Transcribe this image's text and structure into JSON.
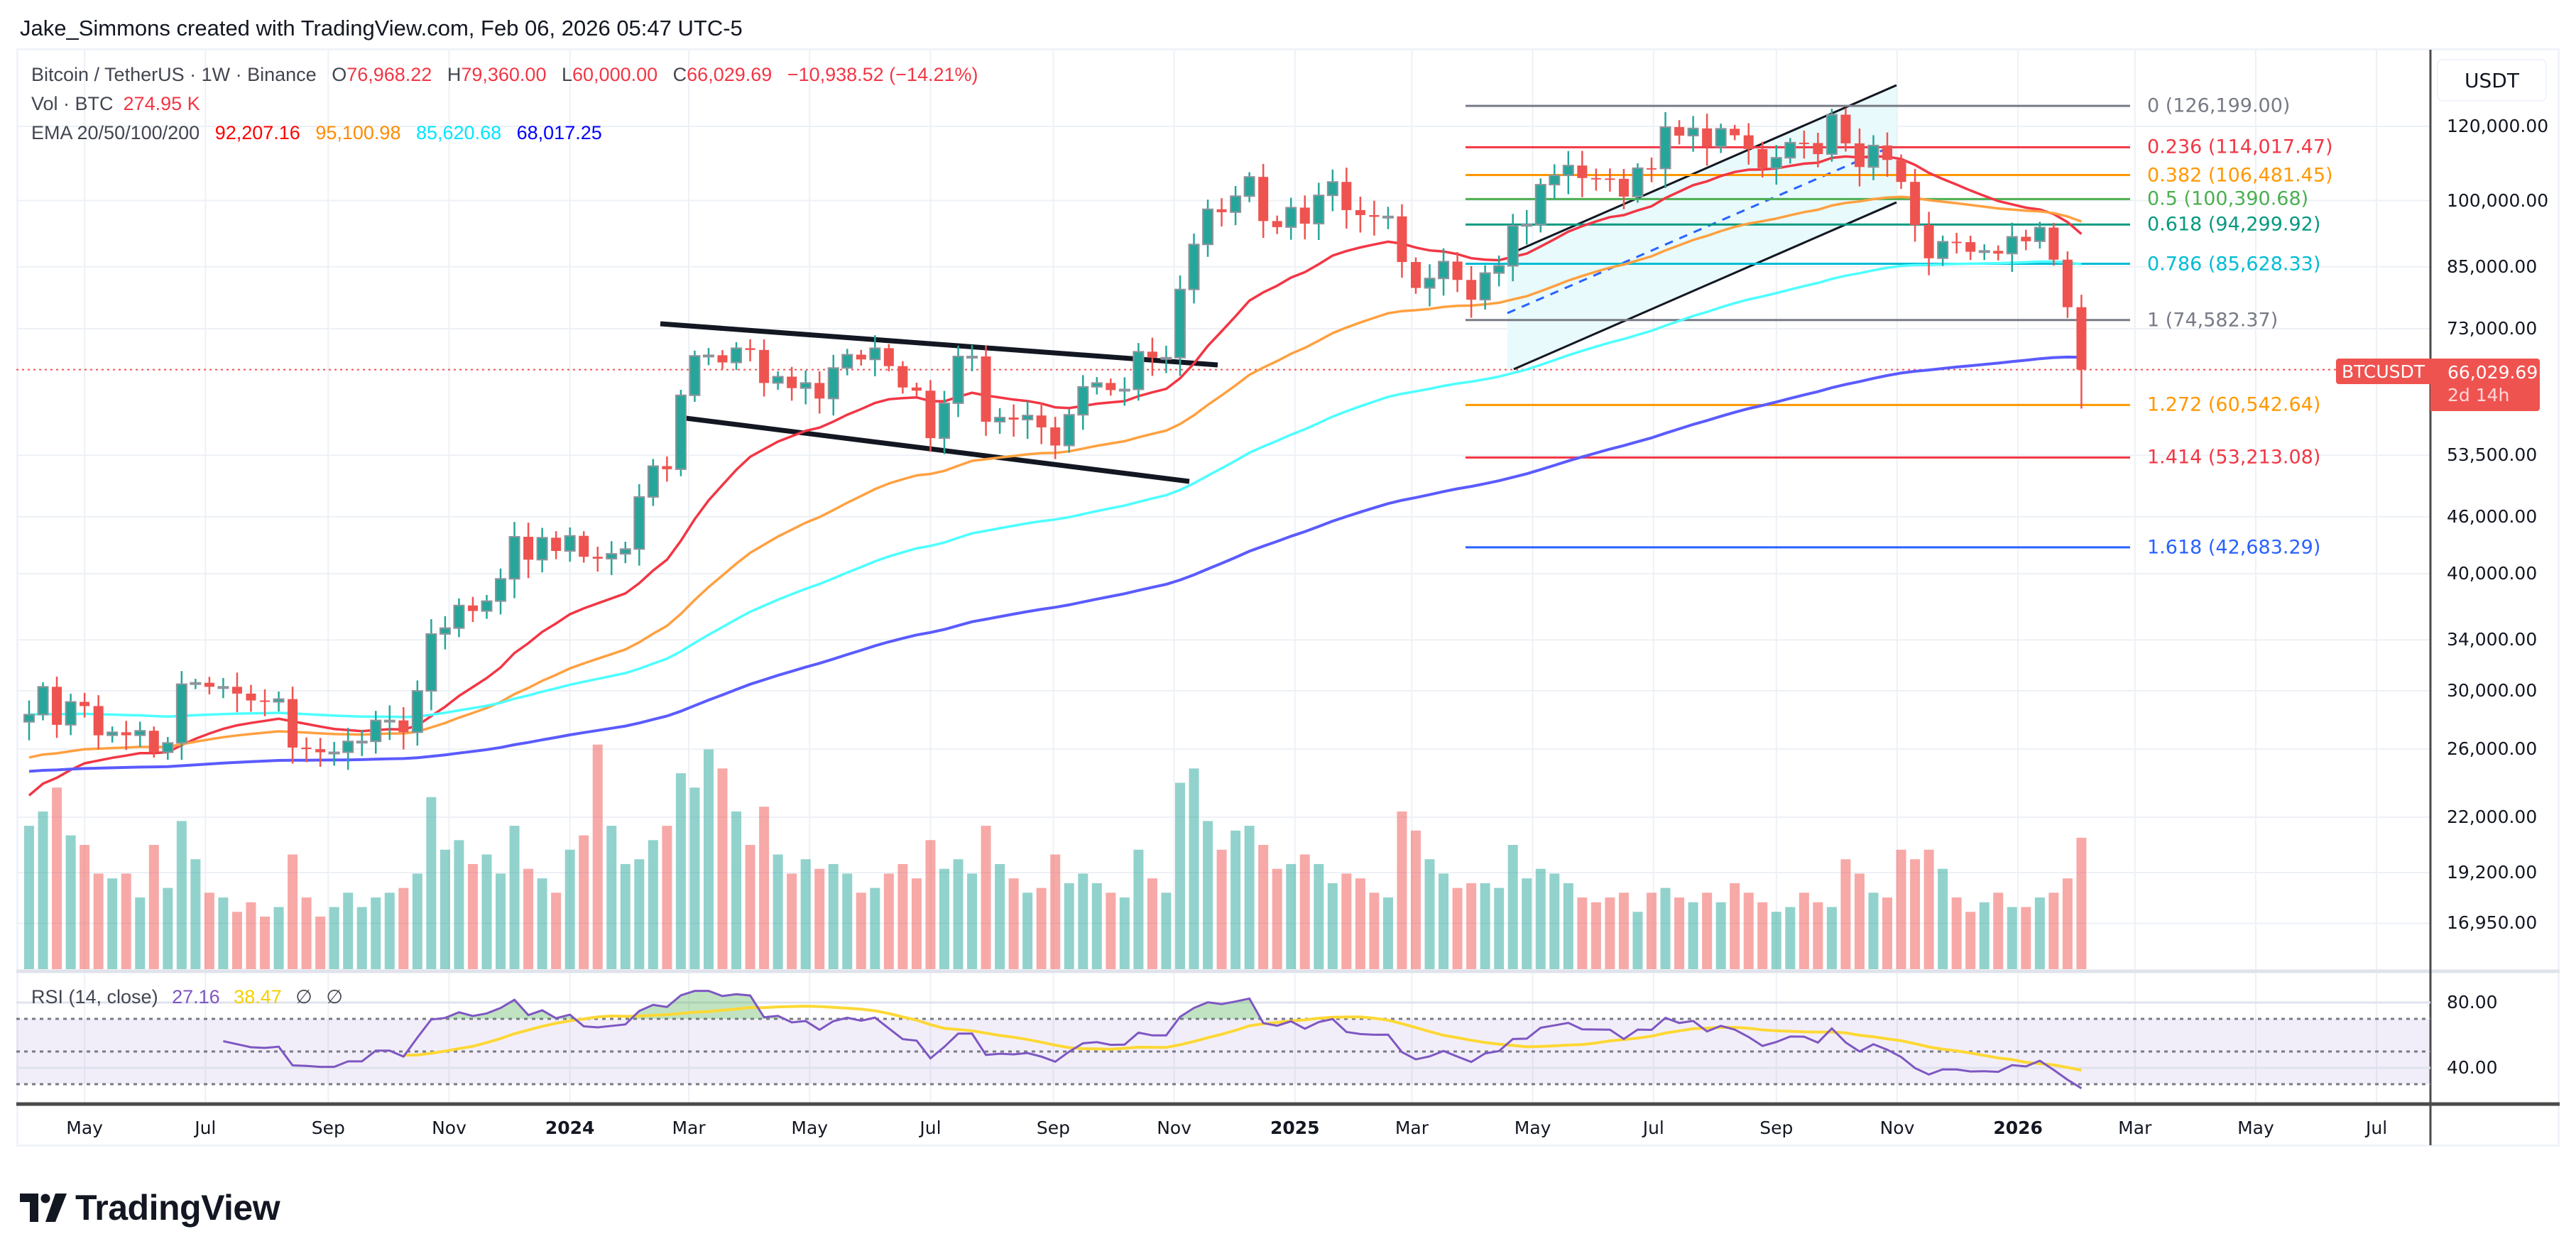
{
  "credit": "Jake_Simmons created with TradingView.com, Feb 06, 2026 05:47 UTC-5",
  "legend": {
    "symbol": "Bitcoin / TetherUS · 1W · Binance",
    "open_label": "O",
    "open": "76,968.22",
    "high_label": "H",
    "high": "79,360.00",
    "low_label": "L",
    "low": "60,000.00",
    "close_label": "C",
    "close": "66,029.69",
    "change": "−10,938.52 (−14.21%)",
    "vol_label": "Vol · BTC",
    "vol_value": "274.95 K",
    "ema_label": "EMA 20/50/100/200",
    "ema_values": [
      "92,207.16",
      "95,100.98",
      "85,620.68",
      "68,017.25"
    ]
  },
  "colors": {
    "up": "#26a69a",
    "down": "#ef5350",
    "ema": [
      "#ff0000",
      "#ff8c00",
      "#00ffff",
      "#0000ff"
    ],
    "ema_lines": [
      "#f23645",
      "#ffa040",
      "#4dffff",
      "#5b5bff"
    ],
    "rsi": "#7e57c2",
    "rsi_ma": "#fdd835",
    "fill_channel": "#e8fafb"
  },
  "price_axis": {
    "currency": "USDT",
    "ticks": [
      "120,000.00",
      "100,000.00",
      "85,000.00",
      "73,000.00",
      "53,500.00",
      "46,000.00",
      "40,000.00",
      "34,000.00",
      "30,000.00",
      "26,000.00",
      "22,000.00",
      "19,200.00",
      "16,950.00"
    ],
    "tick_values": [
      120000,
      100000,
      85000,
      73000,
      53500,
      46000,
      40000,
      34000,
      30000,
      26000,
      22000,
      19200,
      16950
    ],
    "last_symbol": "BTCUSDT",
    "last_price": "66,029.69",
    "last_price_value": 66029.69,
    "countdown": "2d 14h"
  },
  "time_axis": [
    {
      "label": "May",
      "date": "2023-05-01"
    },
    {
      "label": "Jul",
      "date": "2023-07-01"
    },
    {
      "label": "Sep",
      "date": "2023-09-01"
    },
    {
      "label": "Nov",
      "date": "2023-11-01"
    },
    {
      "label": "2024",
      "date": "2024-01-01",
      "bold": true
    },
    {
      "label": "Mar",
      "date": "2024-03-01"
    },
    {
      "label": "May",
      "date": "2024-05-01"
    },
    {
      "label": "Jul",
      "date": "2024-07-01"
    },
    {
      "label": "Sep",
      "date": "2024-09-01"
    },
    {
      "label": "Nov",
      "date": "2024-11-01"
    },
    {
      "label": "2025",
      "date": "2025-01-01",
      "bold": true
    },
    {
      "label": "Mar",
      "date": "2025-03-01"
    },
    {
      "label": "May",
      "date": "2025-05-01"
    },
    {
      "label": "Jul",
      "date": "2025-07-01"
    },
    {
      "label": "Sep",
      "date": "2025-09-01"
    },
    {
      "label": "Nov",
      "date": "2025-11-01"
    },
    {
      "label": "2026",
      "date": "2026-01-01",
      "bold": true
    },
    {
      "label": "Mar",
      "date": "2026-03-01"
    },
    {
      "label": "May",
      "date": "2026-05-01"
    },
    {
      "label": "Jul",
      "date": "2026-07-01"
    }
  ],
  "fib": [
    {
      "level": "0",
      "price": 126199.0,
      "text": "0 (126,199.00)",
      "color": "#787b86"
    },
    {
      "level": "0.236",
      "price": 114017.47,
      "text": "0.236 (114,017.47)",
      "color": "#f23645"
    },
    {
      "level": "0.382",
      "price": 106481.45,
      "text": "0.382 (106,481.45)",
      "color": "#ff9800"
    },
    {
      "level": "0.5",
      "price": 100390.68,
      "text": "0.5 (100,390.68)",
      "color": "#4caf50"
    },
    {
      "level": "0.618",
      "price": 94299.92,
      "text": "0.618 (94,299.92)",
      "color": "#089981"
    },
    {
      "level": "0.786",
      "price": 85628.33,
      "text": "0.786 (85,628.33)",
      "color": "#00bcd4"
    },
    {
      "level": "1",
      "price": 74582.37,
      "text": "1 (74,582.37)",
      "color": "#787b86"
    },
    {
      "level": "1.272",
      "price": 60542.64,
      "text": "1.272 (60,542.64)",
      "color": "#ff9800"
    },
    {
      "level": "1.414",
      "price": 53213.08,
      "text": "1.414 (53,213.08)",
      "color": "#f23645"
    },
    {
      "level": "1.618",
      "price": 42683.29,
      "text": "1.618 (42,683.29)",
      "color": "#2962ff"
    }
  ],
  "rsi": {
    "label": "RSI (14, close)",
    "value": "27.16",
    "ma_value": "38.47",
    "extra1": "∅",
    "extra2": "∅",
    "ticks": [
      "80.00",
      "40.00"
    ],
    "tick_values": [
      80,
      40
    ],
    "bands": [
      70,
      50,
      30
    ]
  },
  "chart_data": {
    "type": "candlestick",
    "interval": "1W",
    "scale": "log",
    "first_bar": "2023-04-03",
    "last_bar": {
      "open": 76968.22,
      "high": 79360.0,
      "low": 60000.0,
      "close": 66029.69
    },
    "closes": [
      28300,
      30300,
      27600,
      29200,
      28900,
      26900,
      27100,
      26900,
      27200,
      25800,
      26400,
      30500,
      30600,
      30300,
      30300,
      29800,
      29300,
      29200,
      29400,
      26100,
      26000,
      25800,
      25800,
      26500,
      26500,
      27900,
      27900,
      27100,
      30000,
      34500,
      35000,
      37000,
      36500,
      37400,
      39500,
      43800,
      41400,
      43700,
      42300,
      43900,
      41700,
      41500,
      42000,
      42500,
      48300,
      52100,
      51700,
      62000,
      68300,
      68400,
      67200,
      69600,
      69300,
      63900,
      64900,
      63100,
      63900,
      61500,
      66300,
      68500,
      67700,
      69600,
      66600,
      63200,
      62700,
      55800,
      60800,
      68200,
      68200,
      58100,
      58700,
      58400,
      59000,
      57300,
      54800,
      59100,
      63300,
      63900,
      62800,
      62900,
      69000,
      68000,
      68000,
      80400,
      89800,
      97900,
      97200,
      101100,
      106000,
      95100,
      93700,
      98300,
      94500,
      101300,
      104700,
      97700,
      96500,
      96100,
      96200,
      86000,
      80700,
      82600,
      86100,
      82300,
      78400,
      83700,
      85200,
      94000,
      94300,
      104000,
      106400,
      109000,
      105700,
      105600,
      105500,
      101000,
      108300,
      108200,
      119800,
      117300,
      119400,
      114200,
      119300,
      117400,
      113500,
      108300,
      111100,
      115300,
      115200,
      112100,
      123500,
      115100,
      108600,
      114500,
      110500,
      104700,
      94200,
      86800,
      90400,
      90300,
      88200,
      88400,
      87800,
      91500,
      90500,
      93600,
      86500,
      76968.22,
      66029.69
    ],
    "volume_k": [
      300,
      330,
      380,
      280,
      260,
      200,
      190,
      200,
      150,
      260,
      170,
      310,
      230,
      160,
      150,
      120,
      140,
      110,
      130,
      240,
      150,
      110,
      130,
      160,
      130,
      150,
      160,
      170,
      200,
      360,
      250,
      270,
      220,
      240,
      200,
      300,
      210,
      190,
      160,
      250,
      280,
      470,
      300,
      220,
      230,
      270,
      300,
      410,
      380,
      460,
      420,
      330,
      260,
      340,
      240,
      200,
      230,
      210,
      220,
      200,
      160,
      170,
      200,
      220,
      190,
      270,
      210,
      230,
      200,
      300,
      220,
      190,
      160,
      170,
      240,
      180,
      200,
      180,
      160,
      150,
      250,
      190,
      160,
      390,
      420,
      310,
      250,
      290,
      300,
      260,
      210,
      220,
      240,
      220,
      180,
      200,
      190,
      160,
      150,
      330,
      290,
      230,
      200,
      170,
      180,
      180,
      170,
      260,
      190,
      210,
      200,
      180,
      150,
      140,
      150,
      160,
      120,
      160,
      170,
      150,
      140,
      160,
      140,
      180,
      160,
      140,
      120,
      130,
      160,
      140,
      130,
      230,
      200,
      160,
      150,
      250,
      230,
      250,
      210,
      150,
      120,
      140,
      160,
      130,
      130,
      150,
      160,
      190,
      274.95
    ],
    "indicators": [
      "EMA 20",
      "EMA 50",
      "EMA 100",
      "EMA 200",
      "RSI 14"
    ]
  },
  "logo": {
    "text": "TradingView"
  }
}
